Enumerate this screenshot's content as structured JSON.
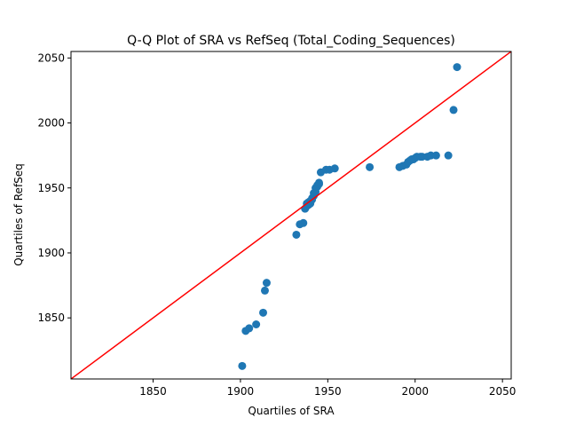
{
  "chart_data": {
    "type": "scatter",
    "title": "Q-Q Plot of SRA vs RefSeq (Total_Coding_Sequences)",
    "xlabel": "Quartiles of SRA",
    "ylabel": "Quartiles of RefSeq",
    "xlim": [
      1803,
      2055
    ],
    "ylim": [
      1803,
      2055
    ],
    "xticks": [
      1850,
      1900,
      1950,
      2000,
      2050
    ],
    "yticks": [
      1850,
      1900,
      1950,
      2000,
      2050
    ],
    "grid": false,
    "legend": "none",
    "colors": {
      "points": "#1f77b4",
      "reference_line": "#ff0000"
    },
    "reference_line": {
      "from": [
        1803,
        1803
      ],
      "to": [
        2055,
        2055
      ]
    },
    "points": [
      [
        1901,
        1813
      ],
      [
        1903,
        1840
      ],
      [
        1905,
        1842
      ],
      [
        1909,
        1845
      ],
      [
        1913,
        1854
      ],
      [
        1914,
        1871
      ],
      [
        1915,
        1877
      ],
      [
        1932,
        1914
      ],
      [
        1934,
        1922
      ],
      [
        1936,
        1923
      ],
      [
        1937,
        1934
      ],
      [
        1938,
        1936
      ],
      [
        1938,
        1938
      ],
      [
        1939,
        1937
      ],
      [
        1939,
        1939
      ],
      [
        1940,
        1940
      ],
      [
        1940,
        1938
      ],
      [
        1941,
        1941
      ],
      [
        1941,
        1942
      ],
      [
        1942,
        1944
      ],
      [
        1942,
        1946
      ],
      [
        1943,
        1947
      ],
      [
        1943,
        1950
      ],
      [
        1944,
        1951
      ],
      [
        1944,
        1952
      ],
      [
        1945,
        1953
      ],
      [
        1945,
        1954
      ],
      [
        1946,
        1962
      ],
      [
        1949,
        1964
      ],
      [
        1951,
        1964
      ],
      [
        1954,
        1965
      ],
      [
        1974,
        1966
      ],
      [
        1991,
        1966
      ],
      [
        1993,
        1967
      ],
      [
        1995,
        1968
      ],
      [
        1996,
        1970
      ],
      [
        1997,
        1971
      ],
      [
        1998,
        1972
      ],
      [
        1999,
        1972
      ],
      [
        2000,
        1973
      ],
      [
        2001,
        1974
      ],
      [
        2003,
        1974
      ],
      [
        2004,
        1974
      ],
      [
        2007,
        1974
      ],
      [
        2009,
        1975
      ],
      [
        2012,
        1975
      ],
      [
        2019,
        1975
      ],
      [
        2022,
        2010
      ],
      [
        2024,
        2043
      ]
    ]
  }
}
